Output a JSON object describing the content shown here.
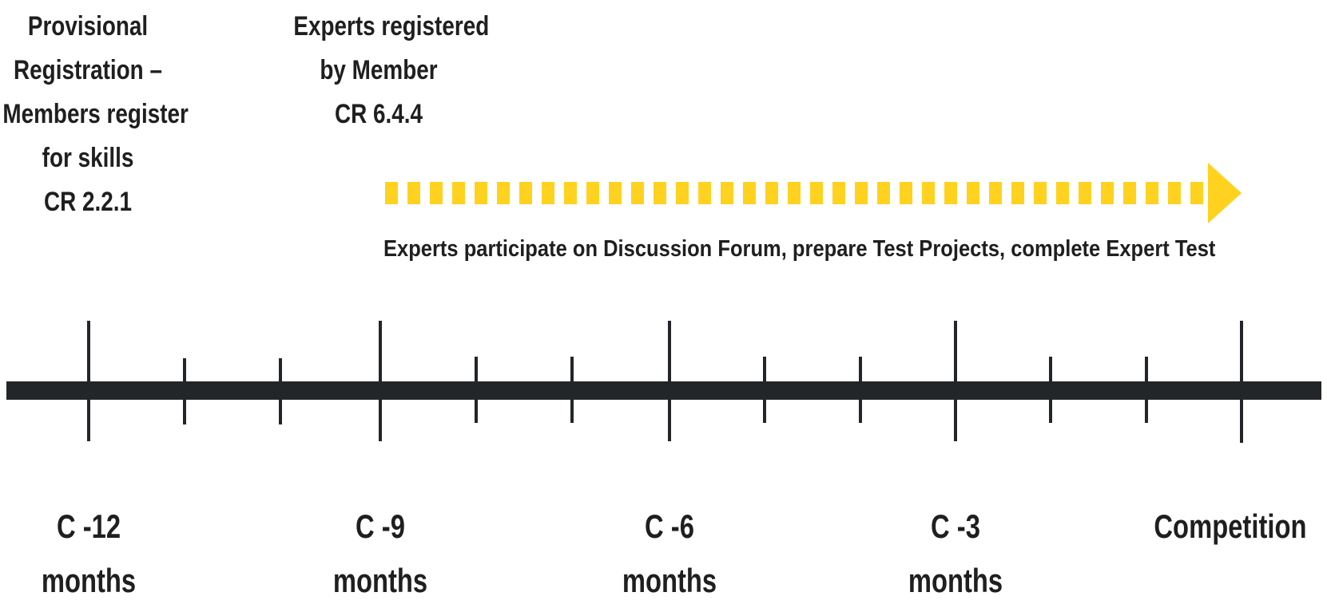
{
  "milestones": {
    "provisional": {
      "lines": [
        "Provisional",
        "Registration –",
        "Members register",
        "for skills",
        "CR 2.2.1"
      ]
    },
    "experts_registered": {
      "lines": [
        "Experts registered",
        "by Member",
        "CR 6.4.4"
      ]
    }
  },
  "arrow": {
    "caption": "Experts participate on Discussion Forum, prepare Test Projects, complete Expert Test",
    "color": "#FFD21F"
  },
  "timeline": {
    "line_color": "#222629",
    "major_labels": [
      {
        "top": "C -12",
        "bottom": "months"
      },
      {
        "top": "C -9",
        "bottom": "months"
      },
      {
        "top": "C -6",
        "bottom": "months"
      },
      {
        "top": "C -3",
        "bottom": "months"
      },
      {
        "top": "Competition",
        "bottom": ""
      }
    ]
  }
}
